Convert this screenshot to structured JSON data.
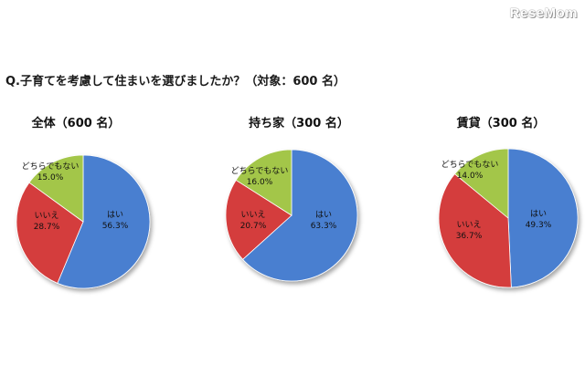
{
  "watermark": "ReseMom",
  "question": "Q.子育てを考慮して住まいを選びましたか？（対象：600 名）",
  "colors": {
    "hai": "#4a7fd0",
    "iie": "#d43c3c",
    "dochira": "#a3c64a"
  },
  "chart_data": [
    {
      "type": "pie",
      "title": "全体（600 名）",
      "slices": [
        {
          "label": "はい",
          "value": 56.3,
          "value_label": "56.3%",
          "color_key": "hai"
        },
        {
          "label": "いいえ",
          "value": 28.7,
          "value_label": "28.7%",
          "color_key": "iie"
        },
        {
          "label": "どちらでもない",
          "value": 15.0,
          "value_label": "15.0%",
          "color_key": "dochira"
        }
      ]
    },
    {
      "type": "pie",
      "title": "持ち家（300 名）",
      "slices": [
        {
          "label": "はい",
          "value": 63.3,
          "value_label": "63.3%",
          "color_key": "hai"
        },
        {
          "label": "いいえ",
          "value": 20.7,
          "value_label": "20.7%",
          "color_key": "iie"
        },
        {
          "label": "どちらでもない",
          "value": 16.0,
          "value_label": "16.0%",
          "color_key": "dochira"
        }
      ]
    },
    {
      "type": "pie",
      "title": "賃貸（300 名）",
      "slices": [
        {
          "label": "はい",
          "value": 49.3,
          "value_label": "49.3%",
          "color_key": "hai"
        },
        {
          "label": "いいえ",
          "value": 36.7,
          "value_label": "36.7%",
          "color_key": "iie"
        },
        {
          "label": "どちらでもない",
          "value": 14.0,
          "value_label": "14.0%",
          "color_key": "dochira"
        }
      ]
    }
  ]
}
